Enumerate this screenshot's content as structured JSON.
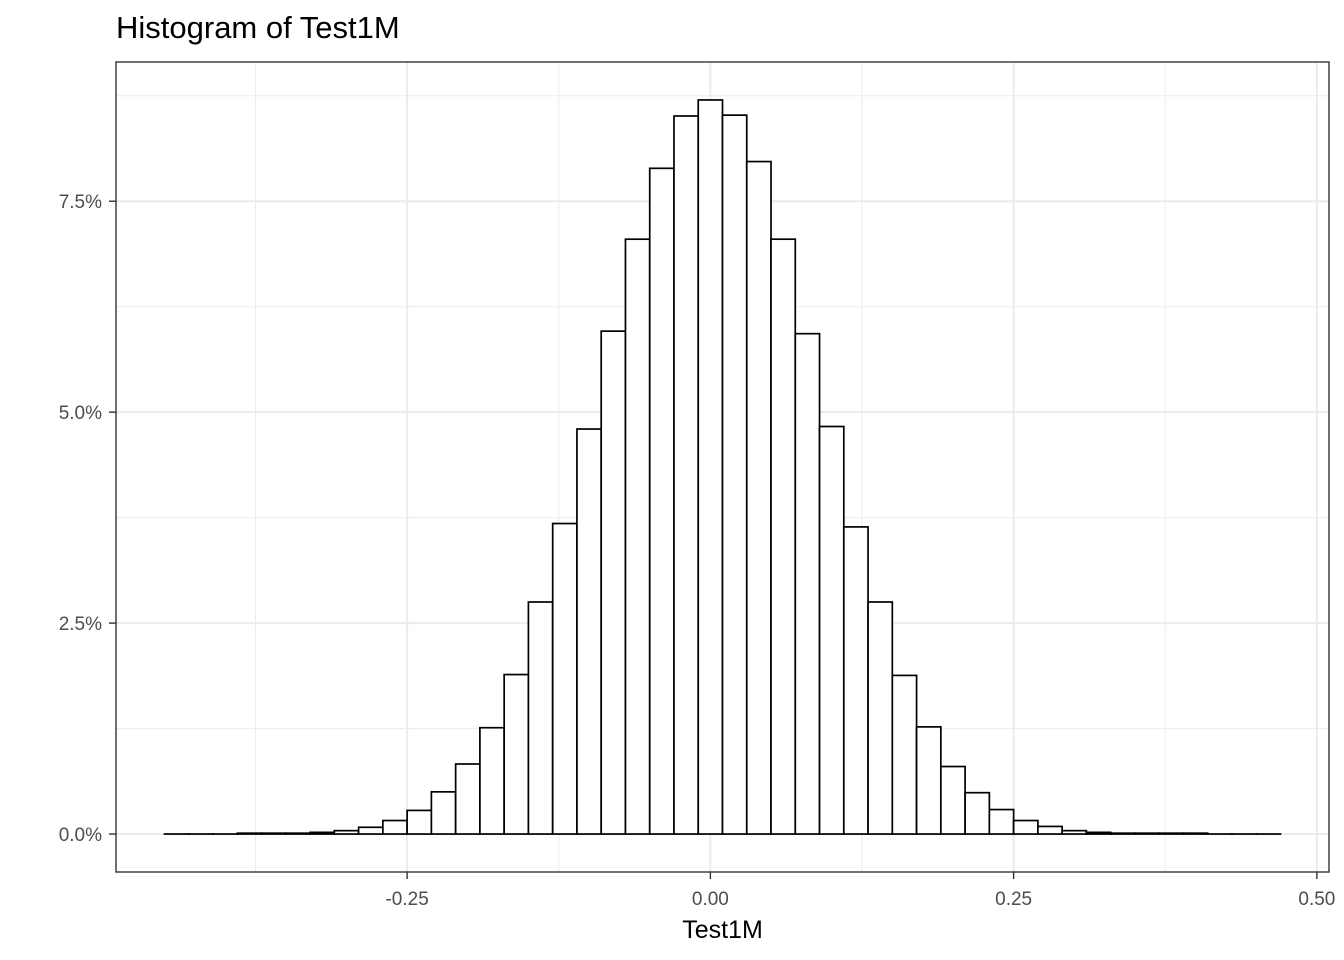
{
  "chart_data": {
    "type": "bar",
    "title": "Histogram of Test1M",
    "xlabel": "Test1M",
    "ylabel": "",
    "xlim": [
      -0.49,
      0.51
    ],
    "ylim": [
      -0.0045,
      0.0915
    ],
    "x_ticks": [
      -0.25,
      0.0,
      0.25,
      0.5
    ],
    "x_tick_labels": [
      "-0.25",
      "0.00",
      "0.25",
      "0.50"
    ],
    "y_ticks": [
      0.0,
      0.025,
      0.05,
      0.075
    ],
    "y_tick_labels": [
      "0.0%",
      "2.5%",
      "5.0%",
      "7.5%"
    ],
    "grid": true,
    "bin_width": 0.02,
    "bins": [
      {
        "x0": -0.45,
        "x1": -0.43,
        "value": 0.0
      },
      {
        "x0": -0.43,
        "x1": -0.41,
        "value": 0.0
      },
      {
        "x0": -0.41,
        "x1": -0.39,
        "value": 0.0
      },
      {
        "x0": -0.39,
        "x1": -0.37,
        "value": 0.0001
      },
      {
        "x0": -0.37,
        "x1": -0.35,
        "value": 0.0001
      },
      {
        "x0": -0.35,
        "x1": -0.33,
        "value": 0.0001
      },
      {
        "x0": -0.33,
        "x1": -0.31,
        "value": 0.0002
      },
      {
        "x0": -0.31,
        "x1": -0.29,
        "value": 0.0004
      },
      {
        "x0": -0.29,
        "x1": -0.27,
        "value": 0.0008
      },
      {
        "x0": -0.27,
        "x1": -0.25,
        "value": 0.0016
      },
      {
        "x0": -0.25,
        "x1": -0.23,
        "value": 0.0028
      },
      {
        "x0": -0.23,
        "x1": -0.21,
        "value": 0.005
      },
      {
        "x0": -0.21,
        "x1": -0.19,
        "value": 0.0083
      },
      {
        "x0": -0.19,
        "x1": -0.17,
        "value": 0.0126
      },
      {
        "x0": -0.17,
        "x1": -0.15,
        "value": 0.0189
      },
      {
        "x0": -0.15,
        "x1": -0.13,
        "value": 0.0275
      },
      {
        "x0": -0.13,
        "x1": -0.11,
        "value": 0.0368
      },
      {
        "x0": -0.11,
        "x1": -0.09,
        "value": 0.048
      },
      {
        "x0": -0.09,
        "x1": -0.07,
        "value": 0.0596
      },
      {
        "x0": -0.07,
        "x1": -0.05,
        "value": 0.0705
      },
      {
        "x0": -0.05,
        "x1": -0.03,
        "value": 0.0789
      },
      {
        "x0": -0.03,
        "x1": -0.01,
        "value": 0.0851
      },
      {
        "x0": -0.01,
        "x1": 0.01,
        "value": 0.087
      },
      {
        "x0": 0.01,
        "x1": 0.03,
        "value": 0.0852
      },
      {
        "x0": 0.03,
        "x1": 0.05,
        "value": 0.0797
      },
      {
        "x0": 0.05,
        "x1": 0.07,
        "value": 0.0705
      },
      {
        "x0": 0.07,
        "x1": 0.09,
        "value": 0.0593
      },
      {
        "x0": 0.09,
        "x1": 0.11,
        "value": 0.0483
      },
      {
        "x0": 0.11,
        "x1": 0.13,
        "value": 0.0364
      },
      {
        "x0": 0.13,
        "x1": 0.15,
        "value": 0.0275
      },
      {
        "x0": 0.15,
        "x1": 0.17,
        "value": 0.0188
      },
      {
        "x0": 0.17,
        "x1": 0.19,
        "value": 0.0127
      },
      {
        "x0": 0.19,
        "x1": 0.21,
        "value": 0.008
      },
      {
        "x0": 0.21,
        "x1": 0.23,
        "value": 0.0049
      },
      {
        "x0": 0.23,
        "x1": 0.25,
        "value": 0.0029
      },
      {
        "x0": 0.25,
        "x1": 0.27,
        "value": 0.0016
      },
      {
        "x0": 0.27,
        "x1": 0.29,
        "value": 0.0009
      },
      {
        "x0": 0.29,
        "x1": 0.31,
        "value": 0.0004
      },
      {
        "x0": 0.31,
        "x1": 0.33,
        "value": 0.0002
      },
      {
        "x0": 0.33,
        "x1": 0.35,
        "value": 0.0001
      },
      {
        "x0": 0.35,
        "x1": 0.37,
        "value": 0.0001
      },
      {
        "x0": 0.37,
        "x1": 0.39,
        "value": 0.0001
      },
      {
        "x0": 0.39,
        "x1": 0.41,
        "value": 0.0001
      },
      {
        "x0": 0.41,
        "x1": 0.43,
        "value": 0.0
      },
      {
        "x0": 0.43,
        "x1": 0.45,
        "value": 0.0
      },
      {
        "x0": 0.45,
        "x1": 0.47,
        "value": 0.0
      }
    ],
    "colors": {
      "fill": "#ffffff",
      "outline": "#000000",
      "grid": "#ebebeb",
      "panel_border": "#333333"
    }
  }
}
